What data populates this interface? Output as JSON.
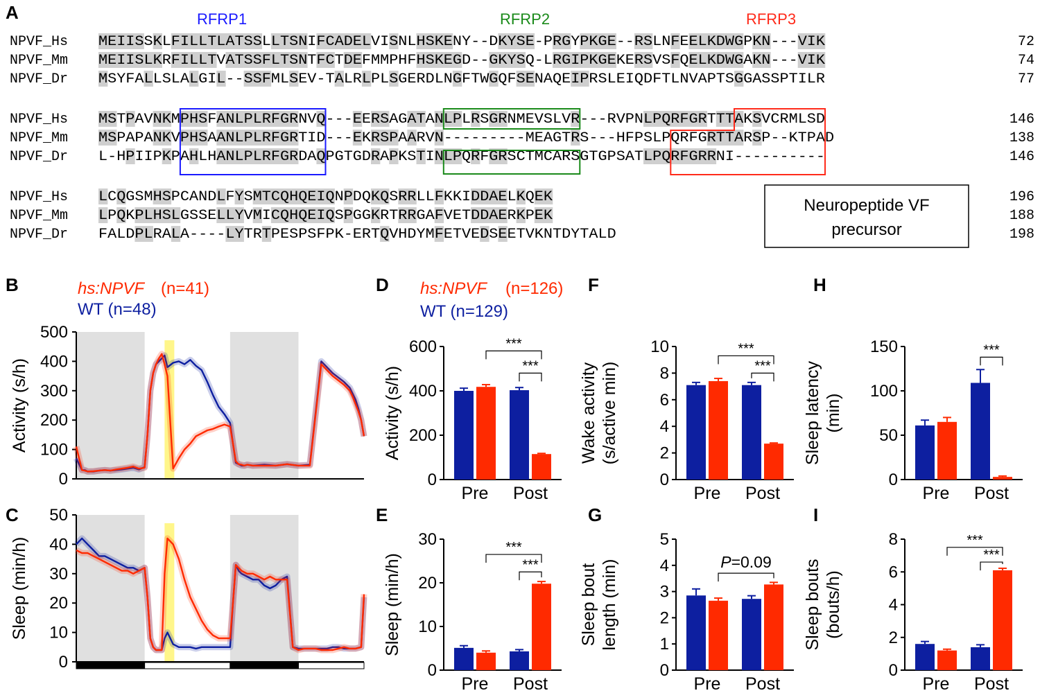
{
  "alignment": {
    "panel_letter": "A",
    "peptides": [
      {
        "label": "RFRP1",
        "color": "#1a1aff"
      },
      {
        "label": "RFRP2",
        "color": "#1a8a1a"
      },
      {
        "label": "RFRP3",
        "color": "#ff2a1a"
      }
    ],
    "blocks": [
      {
        "rows": [
          {
            "name": "NPVF_Hs",
            "seq": "MEIISSKLFILLTLATSSLLTSNIFCADELVISNLHSKENY--DKYSE-PRGYPKGE--RSLNFEELKDWGPKN---VIK",
            "num": "72"
          },
          {
            "name": "NPVF_Mm",
            "seq": "MEIISLKRFILLTVATSSFLTSNTFCTDEFMMPHFHSKEGD--GKYSQ-LRGIPKGEKERSVSFQELKDWGAKN---VIK",
            "num": "74"
          },
          {
            "name": "NPVF_Dr",
            "seq": "MSYFALLSLALGIL--SSFMLSEV-TALRLPLSGERDLNGFTWGQFSENAQEIPRSLEIQDFTLNVAPTSGGASSPTILR",
            "num": "77"
          }
        ]
      },
      {
        "rows": [
          {
            "name": "NPVF_Hs",
            "seq": "MSTPAVNKMPHSFANLPLRFGRNVQ---EERSAGATANLPLRSGRNMEVSLVR---RVPNLPQRFGRTTTAKSVCRMLSD",
            "num": "146"
          },
          {
            "name": "NPVF_Mm",
            "seq": "MSPAPANKVPHSAANLPLRFGRTID---EKRSPAARVN---------MEAGTRS---HFPSLPQRFGRTTARSP--KTPAD",
            "num": "138"
          },
          {
            "name": "NPVF_Dr",
            "seq": "L-HPIIPKPAHLHANLPLRFGRDAQPGTGDRAPKSTINLPQRFGRSCTMCARSGTGPSATLPQRFGRRNI----------",
            "num": "146"
          }
        ]
      },
      {
        "rows": [
          {
            "name": "NPVF_Hs",
            "seq": "LCQGSMHSPCANDLFYSMTCQHQEIQNPDQKQSRRLLFKKIDDAELKQEK",
            "num": "196"
          },
          {
            "name": "NPVF_Mm",
            "seq": "LPQKPLHSLGSSELLYVMICQHQEIQSPGGKRTRRGAFVETDDAERKPEK",
            "num": "188"
          },
          {
            "name": "NPVF_Dr",
            "seq": "FALDPLRALA----LYTRTPESPSFPK-ERTQVHDYMFETVEDSEETVKNTDYTALD",
            "num": "198"
          }
        ]
      }
    ],
    "precursor_box": [
      "Neuropeptide VF",
      "precursor"
    ]
  },
  "timecourse": {
    "legend_red_italic": "hs:NPVF",
    "legend_red_n": " (n=41)",
    "legend_blue": "WT (n=48)",
    "panels": [
      {
        "letter": "B",
        "ylabel": "Activity (s/h)",
        "ylim": [
          0,
          500
        ],
        "ticks": [
          "0",
          "100",
          "200",
          "300",
          "400",
          "500"
        ],
        "wt": {
          "t": [
            0,
            2,
            3,
            4,
            6,
            8,
            10,
            12,
            14,
            16,
            18,
            20,
            22,
            24,
            25,
            26,
            27,
            28,
            29,
            30,
            31,
            32,
            34,
            36,
            38,
            40,
            42,
            44,
            46,
            48,
            50,
            52,
            54,
            55,
            56,
            57,
            58,
            59,
            60,
            62,
            66,
            70,
            74,
            78,
            82,
            86,
            90,
            94,
            96,
            97,
            98,
            99,
            100,
            101
          ],
          "v": [
            70,
            30,
            30,
            25,
            25,
            28,
            30,
            28,
            30,
            32,
            35,
            38,
            32,
            40,
            150,
            300,
            360,
            390,
            400,
            410,
            420,
            380,
            395,
            400,
            390,
            405,
            385,
            370,
            330,
            285,
            245,
            220,
            190,
            120,
            55,
            50,
            45,
            45,
            48,
            45,
            48,
            45,
            50,
            45,
            48,
            400,
            360,
            330,
            310,
            290,
            270,
            240,
            200,
            145
          ]
        },
        "hs": {
          "t": [
            0,
            2,
            3,
            4,
            6,
            8,
            10,
            12,
            14,
            16,
            18,
            20,
            22,
            24,
            25,
            26,
            27,
            28,
            29,
            30,
            31,
            32,
            34,
            36,
            38,
            40,
            42,
            44,
            46,
            48,
            50,
            52,
            54,
            55,
            56,
            57,
            58,
            59,
            60,
            62,
            66,
            70,
            74,
            78,
            82,
            86,
            90,
            94,
            96,
            97,
            98,
            99,
            100,
            101
          ],
          "v": [
            110,
            30,
            28,
            25,
            26,
            28,
            30,
            28,
            32,
            35,
            38,
            42,
            35,
            38,
            150,
            300,
            360,
            390,
            410,
            425,
            390,
            350,
            35,
            70,
            100,
            120,
            145,
            155,
            165,
            170,
            178,
            185,
            178,
            120,
            60,
            50,
            48,
            45,
            48,
            45,
            45,
            45,
            50,
            45,
            45,
            390,
            350,
            320,
            300,
            280,
            255,
            230,
            200,
            145
          ]
        },
        "yellow_text": ""
      },
      {
        "letter": "C",
        "ylabel": "Sleep (min/h)",
        "ylim": [
          0,
          50
        ],
        "ticks": [
          "0",
          "10",
          "20",
          "30",
          "40",
          "50"
        ],
        "wt": {
          "t": [
            0,
            2,
            4,
            6,
            8,
            10,
            12,
            14,
            16,
            18,
            20,
            22,
            24,
            25,
            26,
            27,
            28,
            29,
            30,
            31,
            32,
            34,
            36,
            38,
            40,
            42,
            44,
            46,
            48,
            50,
            52,
            54,
            55,
            56,
            57,
            58,
            60,
            62,
            64,
            66,
            68,
            70,
            72,
            74,
            76,
            78,
            80,
            82,
            84,
            86,
            88,
            90,
            92,
            94,
            96,
            98,
            100,
            101
          ],
          "v": [
            40,
            42,
            40,
            38,
            36,
            36,
            35,
            34,
            33,
            32,
            32,
            31,
            32,
            22,
            8,
            5,
            4,
            4,
            4,
            8,
            10,
            6,
            5,
            5,
            5,
            4.5,
            5,
            5,
            5,
            5,
            5,
            5,
            20,
            33,
            31,
            30,
            29,
            28,
            28,
            26,
            25,
            26,
            28,
            29,
            5,
            4.5,
            4.5,
            4.5,
            4.5,
            4.5,
            4.5,
            5,
            5,
            4.5,
            4.5,
            4.5,
            5,
            22
          ]
        },
        "hs": {
          "t": [
            0,
            2,
            4,
            6,
            8,
            10,
            12,
            14,
            16,
            18,
            20,
            22,
            24,
            25,
            26,
            27,
            28,
            29,
            30,
            31,
            32,
            34,
            36,
            38,
            40,
            42,
            44,
            46,
            48,
            50,
            52,
            54,
            55,
            56,
            57,
            58,
            60,
            62,
            64,
            66,
            68,
            70,
            72,
            74,
            76,
            78,
            80,
            82,
            84,
            86,
            88,
            90,
            92,
            94,
            96,
            98,
            100,
            101
          ],
          "v": [
            38,
            37,
            37,
            36,
            35,
            34,
            33,
            32,
            31,
            31,
            30,
            31,
            32,
            22,
            8,
            5,
            4,
            4,
            4,
            30,
            42,
            40,
            35,
            28,
            22,
            18,
            14,
            11,
            9,
            8,
            8,
            8,
            20,
            33,
            32,
            31,
            30,
            30,
            29,
            28,
            29,
            28,
            28,
            28,
            5,
            4,
            4.5,
            4.5,
            4.5,
            4,
            4,
            4,
            4.5,
            5,
            4.5,
            4.5,
            5,
            23
          ]
        }
      }
    ]
  },
  "bars": {
    "legend_red_italic": "hs:NPVF",
    "legend_red_n": " (n=126)",
    "legend_blue": "WT (n=129)",
    "colors": {
      "wt": "#0d1fa0",
      "hs": "#ff2a00"
    },
    "groups": [
      "Pre",
      "Post"
    ]
  },
  "chart_data": [
    {
      "type": "line",
      "panel": "B",
      "ylabel": "Activity (s/h)",
      "ylim": [
        0,
        500
      ],
      "series": [
        {
          "name": "hs:NPVF (n=41)",
          "color": "#ff2a00"
        },
        {
          "name": "WT (n=48)",
          "color": "#0d1fa0"
        }
      ],
      "note_values": "see timecourse.panels[0]"
    },
    {
      "type": "line",
      "panel": "C",
      "ylabel": "Sleep (min/h)",
      "ylim": [
        0,
        50
      ],
      "series": [
        {
          "name": "hs:NPVF (n=41)",
          "color": "#ff2a00"
        },
        {
          "name": "WT (n=48)",
          "color": "#0d1fa0"
        }
      ]
    },
    {
      "type": "bar",
      "panel": "D",
      "ylabel": "Activity (s/h)",
      "ylim": [
        0,
        600
      ],
      "ticks": [
        "0",
        "200",
        "400",
        "600"
      ],
      "categories": [
        "Pre",
        "Post"
      ],
      "series": [
        {
          "name": "WT (n=129)",
          "values": [
            400,
            403
          ],
          "err": [
            12,
            12
          ]
        },
        {
          "name": "hs:NPVF (n=126)",
          "values": [
            418,
            115
          ],
          "err": [
            10,
            3
          ]
        }
      ],
      "sig": [
        {
          "label": "***",
          "from": [
            0,
            1
          ],
          "to": [
            1,
            1
          ],
          "level": 580
        },
        {
          "label": "***",
          "from": [
            1,
            0
          ],
          "to": [
            1,
            1
          ],
          "level": 480
        }
      ]
    },
    {
      "type": "bar",
      "panel": "E",
      "ylabel": "Sleep (min/h)",
      "ylim": [
        0,
        30
      ],
      "ticks": [
        "0",
        "10",
        "20",
        "30"
      ],
      "categories": [
        "Pre",
        "Post"
      ],
      "series": [
        {
          "name": "WT (n=129)",
          "values": [
            5.1,
            4.3
          ],
          "err": [
            0.5,
            0.4
          ]
        },
        {
          "name": "hs:NPVF (n=126)",
          "values": [
            4.0,
            19.8
          ],
          "err": [
            0.4,
            0.5
          ]
        }
      ],
      "sig": [
        {
          "label": "***",
          "from": [
            0,
            1
          ],
          "to": [
            1,
            1
          ],
          "level": 26.5
        },
        {
          "label": "***",
          "from": [
            1,
            0
          ],
          "to": [
            1,
            1
          ],
          "level": 22.5
        }
      ]
    },
    {
      "type": "bar",
      "panel": "F",
      "ylabel": "Wake activity (s/active min)",
      "ylim": [
        0,
        10
      ],
      "ticks": [
        "0",
        "2",
        "4",
        "6",
        "8",
        "10"
      ],
      "categories": [
        "Pre",
        "Post"
      ],
      "series": [
        {
          "name": "WT (n=129)",
          "values": [
            7.1,
            7.1
          ],
          "err": [
            0.2,
            0.2
          ]
        },
        {
          "name": "hs:NPVF (n=126)",
          "values": [
            7.4,
            2.7
          ],
          "err": [
            0.2,
            0.05
          ]
        }
      ],
      "sig": [
        {
          "label": "***",
          "from": [
            0,
            1
          ],
          "to": [
            1,
            1
          ],
          "level": 9.3
        },
        {
          "label": "***",
          "from": [
            1,
            0
          ],
          "to": [
            1,
            1
          ],
          "level": 8.0
        }
      ]
    },
    {
      "type": "bar",
      "panel": "G",
      "ylabel": "Sleep bout length (min)",
      "ylim": [
        0,
        5
      ],
      "ticks": [
        "0",
        "1",
        "2",
        "3",
        "4",
        "5"
      ],
      "categories": [
        "Pre",
        "Post"
      ],
      "series": [
        {
          "name": "WT (n=129)",
          "values": [
            2.85,
            2.72
          ],
          "err": [
            0.25,
            0.12
          ]
        },
        {
          "name": "hs:NPVF (n=126)",
          "values": [
            2.65,
            3.27
          ],
          "err": [
            0.1,
            0.08
          ]
        }
      ],
      "sig": [
        {
          "label": "P=0.09",
          "from": [
            0,
            1
          ],
          "to": [
            1,
            1
          ],
          "level": 3.7
        }
      ]
    },
    {
      "type": "bar",
      "panel": "H",
      "ylabel": "Sleep latency (min)",
      "ylim": [
        0,
        150
      ],
      "ticks": [
        "0",
        "50",
        "100",
        "150"
      ],
      "categories": [
        "Pre",
        "Post"
      ],
      "series": [
        {
          "name": "WT (n=129)",
          "values": [
            61,
            109
          ],
          "err": [
            6,
            15
          ]
        },
        {
          "name": "hs:NPVF (n=126)",
          "values": [
            65,
            3
          ],
          "err": [
            5,
            1
          ]
        }
      ],
      "sig": [
        {
          "label": "***",
          "from": [
            1,
            0
          ],
          "to": [
            1,
            1
          ],
          "level": 138
        }
      ]
    },
    {
      "type": "bar",
      "panel": "I",
      "ylabel": "Sleep bouts (bouts/h)",
      "ylim": [
        0,
        8
      ],
      "ticks": [
        "0",
        "2",
        "4",
        "6",
        "8"
      ],
      "categories": [
        "Pre",
        "Post"
      ],
      "series": [
        {
          "name": "WT (n=129)",
          "values": [
            1.6,
            1.4
          ],
          "err": [
            0.15,
            0.15
          ]
        },
        {
          "name": "hs:NPVF (n=126)",
          "values": [
            1.2,
            6.1
          ],
          "err": [
            0.08,
            0.12
          ]
        }
      ],
      "sig": [
        {
          "label": "***",
          "from": [
            0,
            1
          ],
          "to": [
            1,
            1
          ],
          "level": 7.5
        },
        {
          "label": "***",
          "from": [
            1,
            0
          ],
          "to": [
            1,
            1
          ],
          "level": 6.6
        }
      ]
    }
  ],
  "bar_panels": [
    {
      "letter": "D",
      "ylabel_lines": [
        "Activity (s/h)"
      ]
    },
    {
      "letter": "E",
      "ylabel_lines": [
        "Sleep (min/h)"
      ]
    },
    {
      "letter": "F",
      "ylabel_lines": [
        "Wake activity",
        "(s/active min)"
      ]
    },
    {
      "letter": "G",
      "ylabel_lines": [
        "Sleep bout",
        "length (min)"
      ]
    },
    {
      "letter": "H",
      "ylabel_lines": [
        "Sleep latency",
        "(min)"
      ]
    },
    {
      "letter": "I",
      "ylabel_lines": [
        "Sleep bouts",
        "(bouts/h)"
      ]
    }
  ]
}
